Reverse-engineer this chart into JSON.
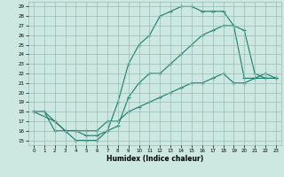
{
  "xlabel": "Humidex (Indice chaleur)",
  "bg_color": "#cce8e0",
  "grid_color": "#99bbbb",
  "line_color": "#1a7a6a",
  "xlim": [
    -0.5,
    23.5
  ],
  "ylim": [
    14.5,
    29.5
  ],
  "xticks": [
    0,
    1,
    2,
    3,
    4,
    5,
    6,
    7,
    8,
    9,
    10,
    11,
    12,
    13,
    14,
    15,
    16,
    17,
    18,
    19,
    20,
    21,
    22,
    23
  ],
  "yticks": [
    15,
    16,
    17,
    18,
    19,
    20,
    21,
    22,
    23,
    24,
    25,
    26,
    27,
    28,
    29
  ],
  "line1_x": [
    0,
    1,
    2,
    3,
    4,
    5,
    6,
    7,
    8,
    9,
    10,
    11,
    12,
    13,
    14,
    15,
    16,
    17,
    18,
    19,
    20,
    21,
    22,
    23
  ],
  "line1_y": [
    18,
    18,
    16,
    16,
    15,
    15,
    15,
    16,
    19,
    23,
    25,
    26,
    28,
    28.5,
    29,
    29,
    28.5,
    28.5,
    28.5,
    27,
    21.5,
    21.5,
    21.5,
    21.5
  ],
  "line2_x": [
    0,
    2,
    3,
    4,
    5,
    6,
    7,
    8,
    9,
    10,
    11,
    12,
    13,
    14,
    15,
    16,
    17,
    18,
    19,
    20,
    21,
    22,
    23
  ],
  "line2_y": [
    18,
    17,
    16,
    16,
    15.5,
    15.5,
    16,
    16.5,
    19.5,
    21,
    22,
    22,
    23,
    24,
    25,
    26,
    26.5,
    27,
    27,
    26.5,
    22,
    21.5,
    21.5
  ],
  "line3_x": [
    0,
    1,
    2,
    3,
    4,
    5,
    6,
    7,
    8,
    9,
    10,
    11,
    12,
    13,
    14,
    15,
    16,
    17,
    18,
    19,
    20,
    21,
    22,
    23
  ],
  "line3_y": [
    18,
    18,
    17,
    16,
    16,
    16,
    16,
    17,
    17,
    18,
    18.5,
    19,
    19.5,
    20,
    20.5,
    21,
    21,
    21.5,
    22,
    21,
    21,
    21.5,
    22,
    21.5
  ]
}
